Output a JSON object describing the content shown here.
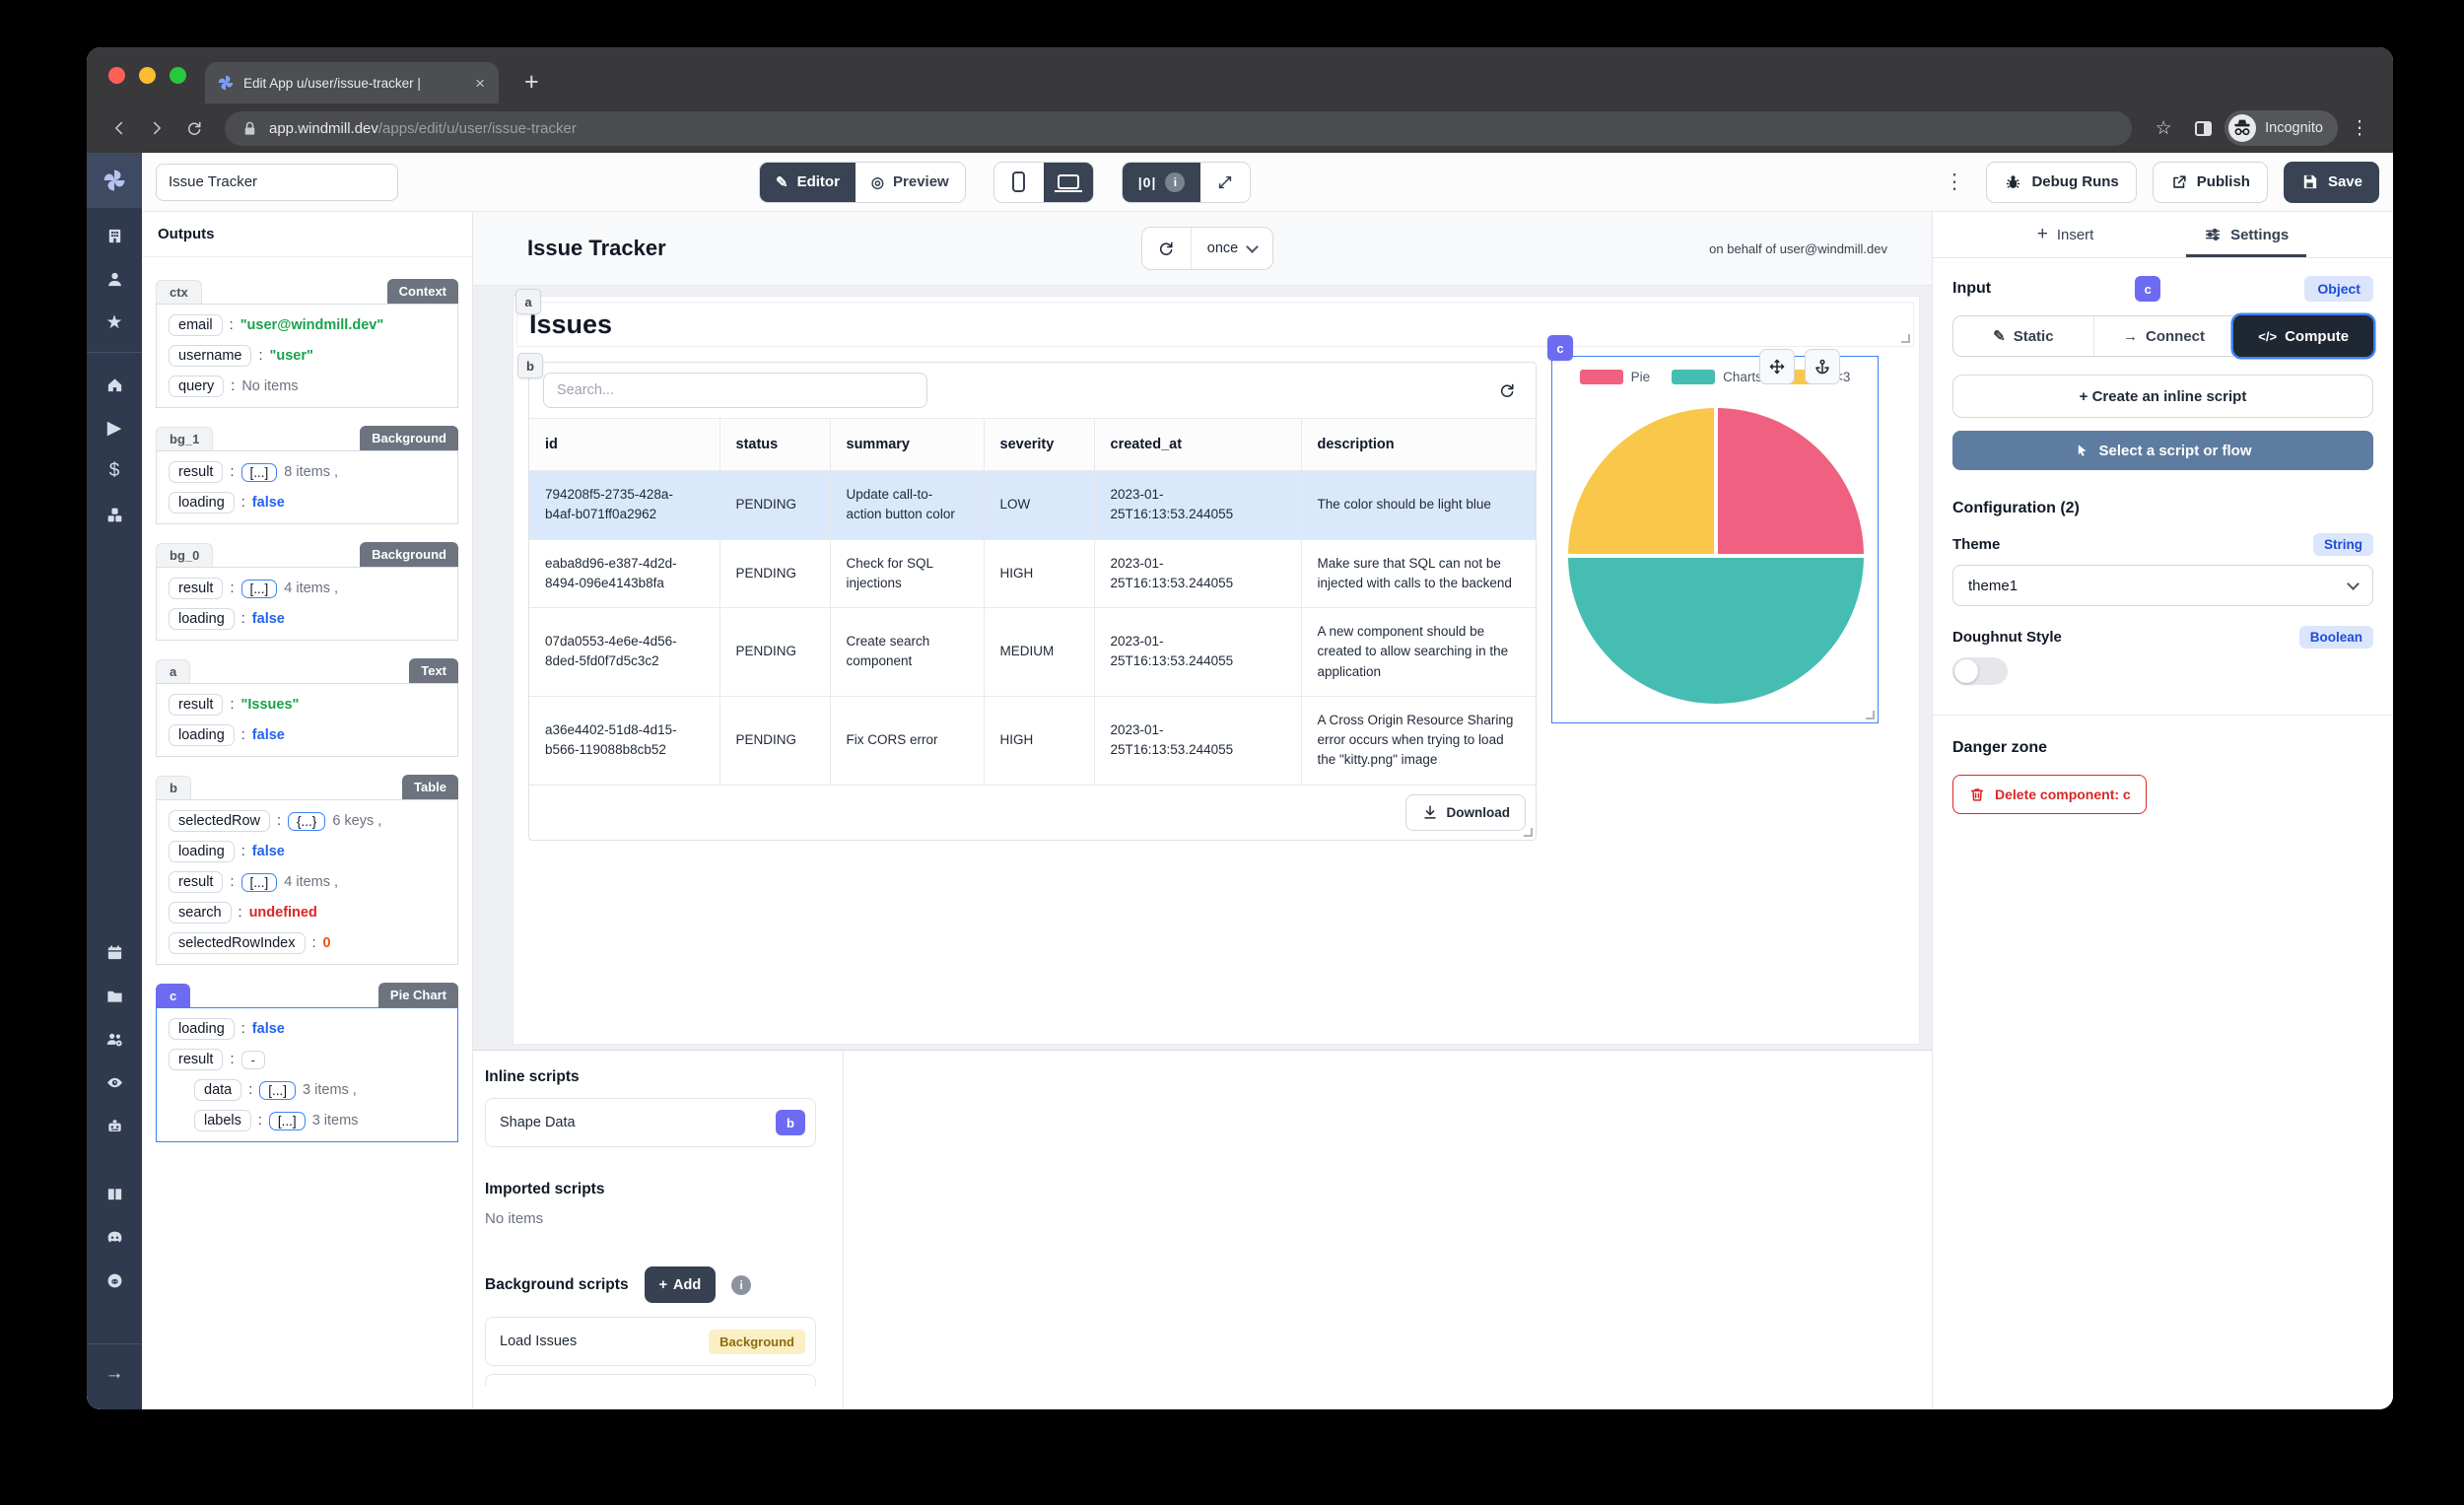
{
  "browser": {
    "tab_title": "Edit App u/user/issue-tracker |",
    "url_host": "app.windmill.dev",
    "url_path": "/apps/edit/u/user/issue-tracker",
    "incognito_label": "Incognito"
  },
  "sidebar": {
    "icon_groups": [
      [
        "building",
        "user",
        "star"
      ],
      [
        "home",
        "play",
        "dollar",
        "cubes"
      ],
      [
        "calendar",
        "folder",
        "user-group-gear",
        "eye",
        "robot"
      ],
      [
        "book",
        "discord",
        "github"
      ]
    ],
    "bottom_icon": "arrow-right"
  },
  "app_toolbar": {
    "app_name": "Issue Tracker",
    "editor_label": "Editor",
    "preview_label": "Preview",
    "debug_counter": "|0|",
    "debug_runs_label": "Debug Runs",
    "publish_label": "Publish",
    "save_label": "Save"
  },
  "outputs_panel": {
    "title": "Outputs",
    "sections": [
      {
        "id": "ctx",
        "badge": "Context",
        "selected": false,
        "rows": [
          {
            "key": "email",
            "value": "\"user@windmill.dev\"",
            "value_type": "string"
          },
          {
            "key": "username",
            "value": "\"user\"",
            "value_type": "string"
          },
          {
            "key": "query",
            "value": "No items",
            "value_type": "muted"
          }
        ]
      },
      {
        "id": "bg_1",
        "badge": "Background",
        "selected": false,
        "rows": [
          {
            "key": "result",
            "chip": "[...]",
            "value": "8 items ,",
            "value_type": "muted"
          },
          {
            "key": "loading",
            "value": "false",
            "value_type": "bool"
          }
        ]
      },
      {
        "id": "bg_0",
        "badge": "Background",
        "selected": false,
        "rows": [
          {
            "key": "result",
            "chip": "[...]",
            "value": "4 items ,",
            "value_type": "muted"
          },
          {
            "key": "loading",
            "value": "false",
            "value_type": "bool"
          }
        ]
      },
      {
        "id": "a",
        "badge": "Text",
        "selected": false,
        "rows": [
          {
            "key": "result",
            "value": "\"Issues\"",
            "value_type": "string"
          },
          {
            "key": "loading",
            "value": "false",
            "value_type": "bool"
          }
        ]
      },
      {
        "id": "b",
        "badge": "Table",
        "selected": false,
        "rows": [
          {
            "key": "selectedRow",
            "chip": "{...}",
            "value": "6 keys ,",
            "value_type": "muted"
          },
          {
            "key": "loading",
            "value": "false",
            "value_type": "bool"
          },
          {
            "key": "result",
            "chip": "[...]",
            "value": "4 items ,",
            "value_type": "muted"
          },
          {
            "key": "search",
            "value": "undefined",
            "value_type": "error"
          },
          {
            "key": "selectedRowIndex",
            "value": "0",
            "value_type": "number"
          }
        ]
      },
      {
        "id": "c",
        "badge": "Pie Chart",
        "selected": true,
        "rows": [
          {
            "key": "loading",
            "value": "false",
            "value_type": "bool"
          },
          {
            "key": "result",
            "chip": "-",
            "chip_style": "plain"
          },
          {
            "key": "data",
            "chip": "[...]",
            "value": "3 items ,",
            "value_type": "muted",
            "indent": true
          },
          {
            "key": "labels",
            "chip": "[...]",
            "value": "3 items",
            "value_type": "muted",
            "indent": true
          }
        ]
      }
    ]
  },
  "canvas": {
    "header_title": "Issue Tracker",
    "refresh_mode": "once",
    "on_behalf": "on behalf of user@windmill.dev",
    "issues_title": "Issues",
    "a_badge": "a",
    "b_badge": "b",
    "c_badge": "c"
  },
  "table": {
    "search_placeholder": "Search...",
    "columns": [
      "id",
      "status",
      "summary",
      "severity",
      "created_at",
      "description"
    ],
    "rows": [
      {
        "selected": true,
        "cells": [
          "794208f5-2735-428a-b4af-b071ff0a2962",
          "PENDING",
          "Update call-to-action button color",
          "LOW",
          "2023-01-25T16:13:53.244055",
          "The color should be light blue"
        ]
      },
      {
        "selected": false,
        "cells": [
          "eaba8d96-e387-4d2d-8494-096e4143b8fa",
          "PENDING",
          "Check for SQL injections",
          "HIGH",
          "2023-01-25T16:13:53.244055",
          "Make sure that SQL can not be injected with calls to the backend"
        ]
      },
      {
        "selected": false,
        "cells": [
          "07da0553-4e6e-4d56-8ded-5fd0f7d5c3c2",
          "PENDING",
          "Create search component",
          "MEDIUM",
          "2023-01-25T16:13:53.244055",
          "A new component should be created to allow searching in the application"
        ]
      },
      {
        "selected": false,
        "cells": [
          "a36e4402-51d8-4d15-b566-119088b8cb52",
          "PENDING",
          "Fix CORS error",
          "HIGH",
          "2023-01-25T16:13:53.244055",
          "A Cross Origin Resource Sharing error occurs when trying to load the \"kitty.png\" image"
        ]
      }
    ],
    "download_label": "Download"
  },
  "chart_data": {
    "type": "pie",
    "labels": [
      "Pie",
      "Charts",
      "<3"
    ],
    "values": [
      25,
      50,
      25
    ],
    "colors": [
      "#f06080",
      "#46bdb2",
      "#f9c84a"
    ],
    "legend_position": "top",
    "title": ""
  },
  "scripts_panel": {
    "inline_title": "Inline scripts",
    "inline_items": [
      {
        "name": "Shape Data",
        "badge": "b"
      }
    ],
    "imported_title": "Imported scripts",
    "empty_label": "No items",
    "background_title": "Background scripts",
    "add_label": "Add",
    "background_items": [
      {
        "name": "Load Issues",
        "badge": "Background"
      }
    ]
  },
  "settings_panel": {
    "insert_tab": "Insert",
    "settings_tab": "Settings",
    "input_label": "Input",
    "component_id": "c",
    "object_badge": "Object",
    "static_label": "Static",
    "connect_label": "Connect",
    "compute_label": "Compute",
    "compute_glyph": "</>",
    "create_inline_label": "+ Create an inline script",
    "select_script_label": "Select a script or flow",
    "configuration_label": "Configuration (2)",
    "theme_label": "Theme",
    "theme_type": "String",
    "theme_value": "theme1",
    "doughnut_label": "Doughnut Style",
    "doughnut_type": "Boolean",
    "danger_zone_label": "Danger zone",
    "delete_label": "Delete component: c"
  }
}
